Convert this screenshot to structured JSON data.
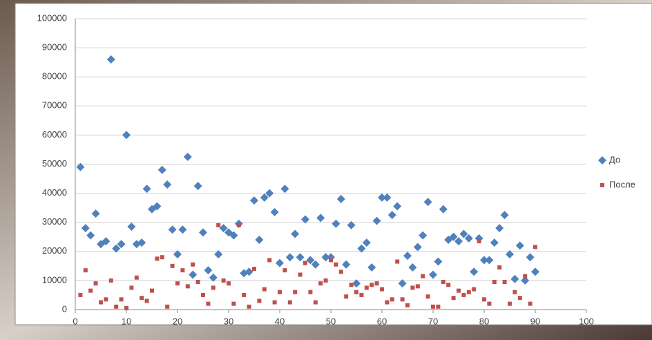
{
  "chart_data": {
    "type": "scatter",
    "x": [
      1,
      2,
      3,
      4,
      5,
      6,
      7,
      8,
      9,
      10,
      11,
      12,
      13,
      14,
      15,
      16,
      17,
      18,
      19,
      20,
      21,
      22,
      23,
      24,
      25,
      26,
      27,
      28,
      29,
      30,
      31,
      32,
      33,
      34,
      35,
      36,
      37,
      38,
      39,
      40,
      41,
      42,
      43,
      44,
      45,
      46,
      47,
      48,
      49,
      50,
      51,
      52,
      53,
      54,
      55,
      56,
      57,
      58,
      59,
      60,
      61,
      62,
      63,
      64,
      65,
      66,
      67,
      68,
      69,
      70,
      71,
      72,
      73,
      74,
      75,
      76,
      77,
      78,
      79,
      80,
      81,
      82,
      83,
      84,
      85,
      86,
      87,
      88,
      89,
      90
    ],
    "series": [
      {
        "name": "До",
        "color": "#4f81bd",
        "marker": "diamond",
        "values": [
          49000,
          28000,
          25500,
          33000,
          22500,
          23500,
          86000,
          21000,
          22500,
          60000,
          28500,
          22500,
          23000,
          41500,
          34500,
          35500,
          48000,
          43000,
          27500,
          19000,
          27500,
          52500,
          12000,
          42500,
          26500,
          13500,
          11000,
          19000,
          28000,
          26500,
          25500,
          29500,
          12500,
          13000,
          37500,
          24000,
          38500,
          40000,
          33500,
          16000,
          41500,
          18000,
          26000,
          18000,
          31000,
          17000,
          15500,
          31500,
          18000,
          18000,
          29500,
          38000,
          15500,
          29000,
          9000,
          21000,
          23000,
          14500,
          30500,
          38500,
          38500,
          32500,
          35500,
          9000,
          18500,
          14500,
          21500,
          25500,
          37000,
          12000,
          16500,
          34500,
          24000,
          25000,
          23500,
          26000,
          24500,
          13000,
          24500,
          17000,
          17000,
          23000,
          28000,
          32500,
          19000,
          10500,
          22000,
          10000,
          18000,
          13000
        ]
      },
      {
        "name": "После",
        "color": "#c0504d",
        "marker": "square",
        "values": [
          5000,
          13500,
          6500,
          9000,
          2500,
          3500,
          10000,
          1000,
          3500,
          500,
          7500,
          11000,
          4000,
          3000,
          6500,
          17500,
          18000,
          1000,
          15000,
          9000,
          13500,
          8000,
          15500,
          9500,
          5000,
          2000,
          7500,
          29000,
          10000,
          9000,
          2000,
          29000,
          5000,
          1000,
          14000,
          3000,
          7000,
          17000,
          2500,
          6000,
          13500,
          2500,
          6000,
          12000,
          16000,
          6000,
          2500,
          9000,
          10000,
          17000,
          15500,
          13000,
          4500,
          8500,
          6000,
          5000,
          7500,
          8500,
          9000,
          7000,
          2500,
          3500,
          16500,
          3500,
          1500,
          7500,
          8000,
          11500,
          4500,
          1000,
          1000,
          9500,
          8500,
          4000,
          6500,
          5000,
          6000,
          7000,
          23500,
          3500,
          2000,
          9500,
          14500,
          9500,
          2000,
          6000,
          4000,
          11500,
          2000,
          21500
        ]
      }
    ],
    "xlim": [
      0,
      100
    ],
    "xticks": [
      0,
      10,
      20,
      30,
      40,
      50,
      60,
      70,
      80,
      90,
      100
    ],
    "ylim": [
      0,
      100000
    ],
    "yticks": [
      0,
      10000,
      20000,
      30000,
      40000,
      50000,
      60000,
      70000,
      80000,
      90000,
      100000
    ],
    "grid": true,
    "legend": "right"
  }
}
